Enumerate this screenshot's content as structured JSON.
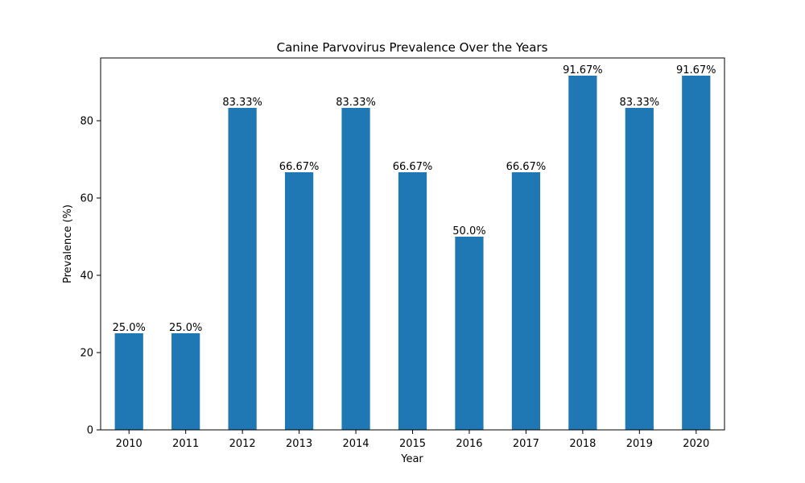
{
  "chart_data": {
    "type": "bar",
    "title": "Canine Parvovirus Prevalence Over the Years",
    "xlabel": "Year",
    "ylabel": "Prevalence (%)",
    "categories": [
      "2010",
      "2011",
      "2012",
      "2013",
      "2014",
      "2015",
      "2016",
      "2017",
      "2018",
      "2019",
      "2020"
    ],
    "values": [
      25.0,
      25.0,
      83.33,
      66.67,
      83.33,
      66.67,
      50.0,
      66.67,
      91.67,
      83.33,
      91.67
    ],
    "data_labels": [
      "25.0%",
      "25.0%",
      "83.33%",
      "66.67%",
      "83.33%",
      "66.67%",
      "50.0%",
      "66.67%",
      "91.67%",
      "83.33%",
      "91.67%"
    ],
    "yticks": [
      0,
      20,
      40,
      60,
      80
    ],
    "ylim": [
      0,
      96.25
    ],
    "grid": false,
    "bar_color": "#1f77b4"
  }
}
